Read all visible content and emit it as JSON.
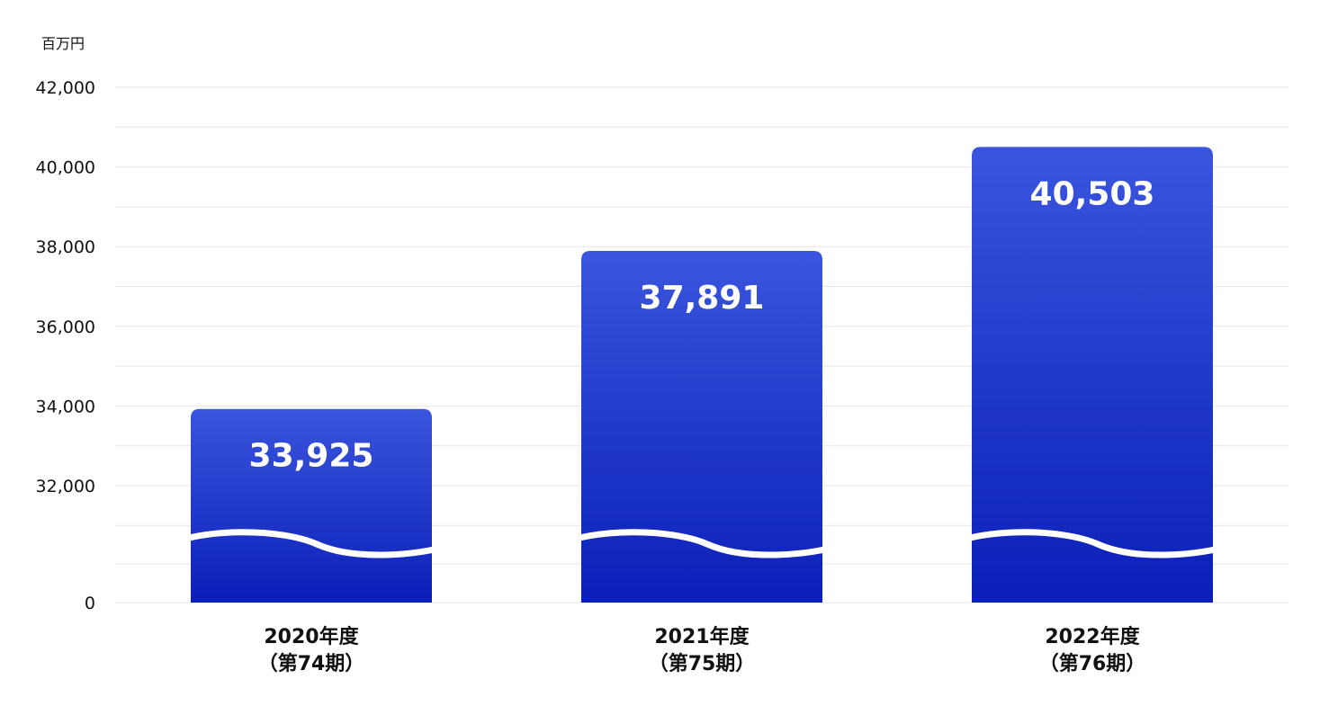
{
  "chart_data": {
    "type": "bar",
    "unit_label": "百万円",
    "categories": [
      [
        "2020年度",
        "（第74期）"
      ],
      [
        "2021年度",
        "（第75期）"
      ],
      [
        "2022年度",
        "（第76期）"
      ]
    ],
    "values": [
      33925,
      37891,
      40503
    ],
    "value_labels": [
      "33,925",
      "37,891",
      "40,503"
    ],
    "y_ticks": [
      {
        "value": 0,
        "label": "0"
      },
      {
        "value": 32000,
        "label": "32,000"
      },
      {
        "value": 34000,
        "label": "34,000"
      },
      {
        "value": 36000,
        "label": "36,000"
      },
      {
        "value": 38000,
        "label": "38,000"
      },
      {
        "value": 40000,
        "label": "40,000"
      },
      {
        "value": 42000,
        "label": "42,000"
      }
    ],
    "axis_break": true,
    "ylim": [
      0,
      42000
    ],
    "grid": true,
    "colors": {
      "bar_top": "#3a55de",
      "bar_bottom": "#0a1fb8",
      "grid": "#e6e6e6",
      "text": "#111111"
    }
  }
}
